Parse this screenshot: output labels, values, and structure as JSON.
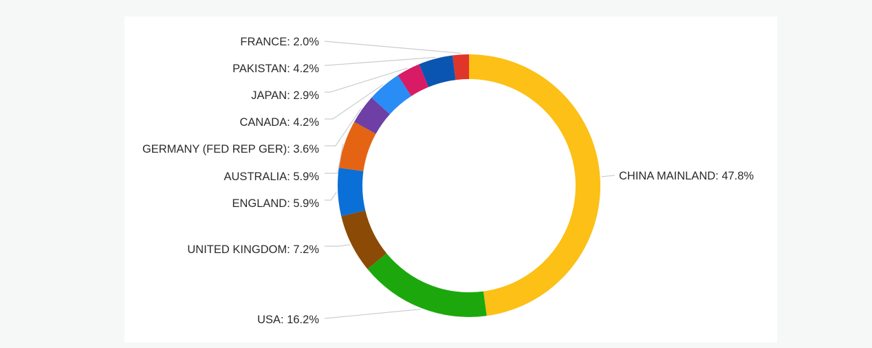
{
  "chart_data": {
    "type": "pie",
    "style": "donut",
    "slices": [
      {
        "label": "CHINA MAINLAND: 47.8%",
        "name": "CHINA MAINLAND",
        "value": 47.8,
        "color": "#fcc016"
      },
      {
        "label": "USA: 16.2%",
        "name": "USA",
        "value": 16.2,
        "color": "#1ca80d"
      },
      {
        "label": "UNITED KINGDOM: 7.2%",
        "name": "UNITED KINGDOM",
        "value": 7.2,
        "color": "#8b4a06"
      },
      {
        "label": "ENGLAND: 5.9%",
        "name": "ENGLAND",
        "value": 5.9,
        "color": "#0b6fd8"
      },
      {
        "label": "AUSTRALIA: 5.9%",
        "name": "AUSTRALIA",
        "value": 5.9,
        "color": "#e46414"
      },
      {
        "label": "GERMANY (FED REP GER): 3.6%",
        "name": "GERMANY (FED REP GER)",
        "value": 3.6,
        "color": "#6e3fa5"
      },
      {
        "label": "CANADA: 4.2%",
        "name": "CANADA",
        "value": 4.2,
        "color": "#2a8cf5"
      },
      {
        "label": "JAPAN: 2.9%",
        "name": "JAPAN",
        "value": 2.9,
        "color": "#d81b64"
      },
      {
        "label": "PAKISTAN: 4.2%",
        "name": "PAKISTAN",
        "value": 4.2,
        "color": "#0b55b2"
      },
      {
        "label": "FRANCE: 2.0%",
        "name": "FRANCE",
        "value": 2.0,
        "color": "#e0352b"
      }
    ]
  }
}
